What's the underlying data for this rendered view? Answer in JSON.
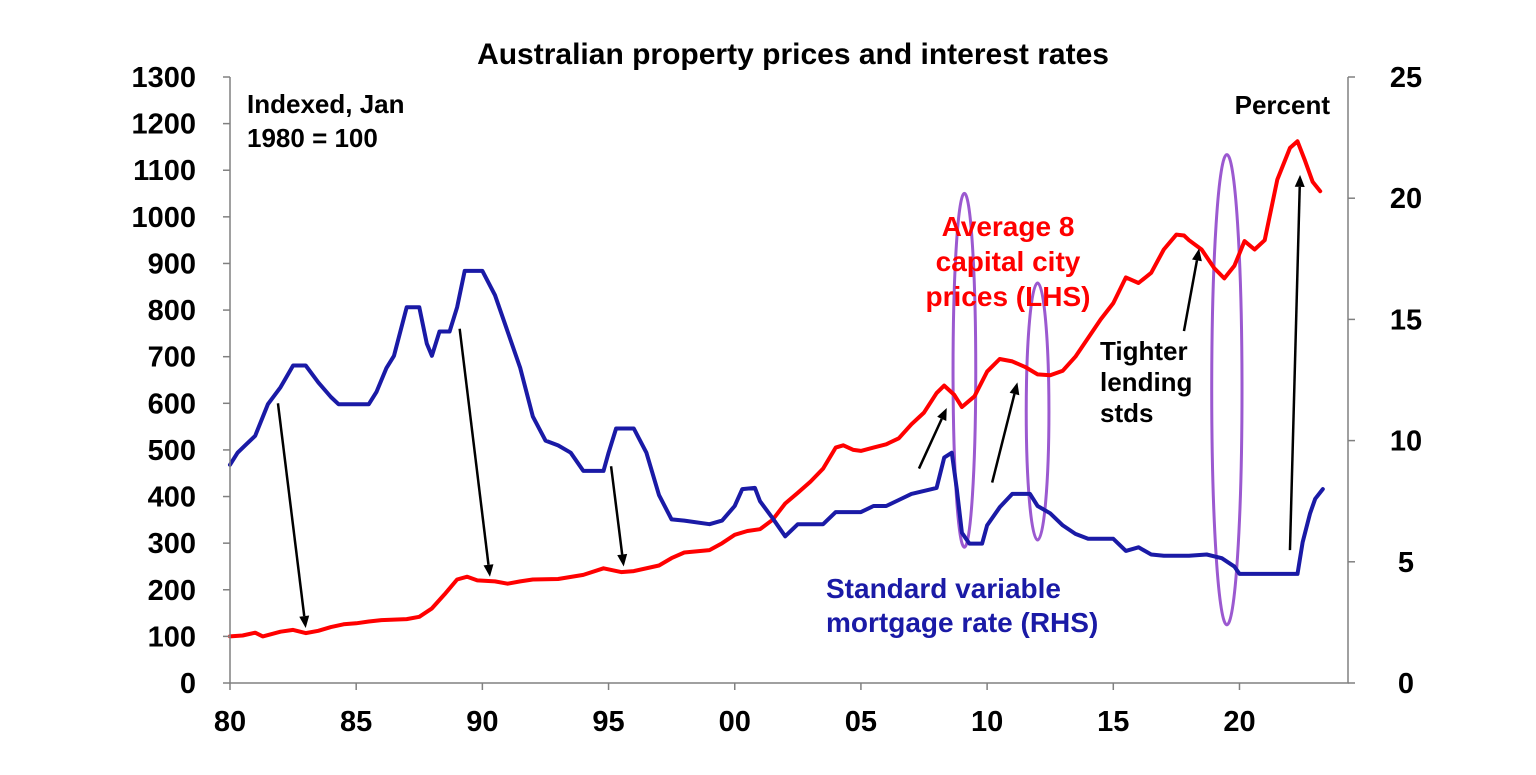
{
  "chart_data": {
    "type": "line",
    "title": "Australian property prices and interest rates",
    "left_axis_note": [
      "Indexed, Jan",
      "1980 = 100"
    ],
    "right_axis_note": "Percent",
    "x_ticks": [
      {
        "label": "80",
        "year": 1980
      },
      {
        "label": "85",
        "year": 1985
      },
      {
        "label": "90",
        "year": 1990
      },
      {
        "label": "95",
        "year": 1995
      },
      {
        "label": "00",
        "year": 2000
      },
      {
        "label": "05",
        "year": 2005
      },
      {
        "label": "10",
        "year": 2010
      },
      {
        "label": "15",
        "year": 2015
      },
      {
        "label": "20",
        "year": 2020
      }
    ],
    "xlim": [
      1980,
      2024.3
    ],
    "y_left": {
      "lim": [
        0,
        1300
      ],
      "ticks": [
        "0",
        "100",
        "200",
        "300",
        "400",
        "500",
        "600",
        "700",
        "800",
        "900",
        "1000",
        "1100",
        "1200",
        "1300"
      ]
    },
    "y_right": {
      "lim": [
        0,
        25
      ],
      "ticks": [
        "0",
        "5",
        "10",
        "15",
        "20",
        "25"
      ]
    },
    "series": [
      {
        "name": "Average 8 capital city prices (LHS)",
        "label_lines": [
          "Average 8",
          "capital city",
          "prices (LHS)"
        ],
        "color": "#ff0000",
        "axis": "left",
        "points": [
          [
            1980,
            100
          ],
          [
            1980.5,
            102
          ],
          [
            1981,
            108
          ],
          [
            1981.3,
            100
          ],
          [
            1982,
            110
          ],
          [
            1982.5,
            114
          ],
          [
            1983,
            107
          ],
          [
            1983.5,
            112
          ],
          [
            1984,
            120
          ],
          [
            1984.5,
            126
          ],
          [
            1985,
            128
          ],
          [
            1985.5,
            132
          ],
          [
            1986,
            135
          ],
          [
            1986.5,
            136
          ],
          [
            1987,
            137
          ],
          [
            1987.5,
            142
          ],
          [
            1988,
            160
          ],
          [
            1988.5,
            190
          ],
          [
            1989,
            222
          ],
          [
            1989.4,
            228
          ],
          [
            1989.8,
            220
          ],
          [
            1990.5,
            218
          ],
          [
            1991,
            213
          ],
          [
            1991.5,
            218
          ],
          [
            1992,
            222
          ],
          [
            1993,
            223
          ],
          [
            1994,
            232
          ],
          [
            1994.8,
            246
          ],
          [
            1995.5,
            238
          ],
          [
            1996,
            240
          ],
          [
            1997,
            252
          ],
          [
            1997.5,
            268
          ],
          [
            1998,
            280
          ],
          [
            1999,
            285
          ],
          [
            1999.5,
            300
          ],
          [
            2000,
            318
          ],
          [
            2000.5,
            326
          ],
          [
            2001,
            330
          ],
          [
            2001.5,
            350
          ],
          [
            2002,
            385
          ],
          [
            2002.5,
            408
          ],
          [
            2003,
            432
          ],
          [
            2003.5,
            460
          ],
          [
            2004,
            505
          ],
          [
            2004.3,
            510
          ],
          [
            2004.7,
            500
          ],
          [
            2005,
            498
          ],
          [
            2005.5,
            505
          ],
          [
            2006,
            512
          ],
          [
            2006.5,
            525
          ],
          [
            2007,
            555
          ],
          [
            2007.5,
            580
          ],
          [
            2008,
            622
          ],
          [
            2008.3,
            638
          ],
          [
            2008.7,
            618
          ],
          [
            2009,
            592
          ],
          [
            2009.5,
            615
          ],
          [
            2010,
            668
          ],
          [
            2010.5,
            695
          ],
          [
            2011,
            690
          ],
          [
            2011.5,
            678
          ],
          [
            2012,
            662
          ],
          [
            2012.5,
            660
          ],
          [
            2013,
            670
          ],
          [
            2013.5,
            700
          ],
          [
            2014,
            740
          ],
          [
            2014.5,
            780
          ],
          [
            2015,
            815
          ],
          [
            2015.5,
            870
          ],
          [
            2016,
            858
          ],
          [
            2016.5,
            880
          ],
          [
            2017,
            930
          ],
          [
            2017.5,
            962
          ],
          [
            2017.8,
            960
          ],
          [
            2018,
            950
          ],
          [
            2018.5,
            930
          ],
          [
            2019,
            890
          ],
          [
            2019.4,
            868
          ],
          [
            2019.8,
            895
          ],
          [
            2020.2,
            948
          ],
          [
            2020.6,
            930
          ],
          [
            2021,
            950
          ],
          [
            2021.5,
            1080
          ],
          [
            2022,
            1148
          ],
          [
            2022.3,
            1162
          ],
          [
            2022.6,
            1120
          ],
          [
            2022.9,
            1075
          ],
          [
            2023.2,
            1055
          ]
        ]
      },
      {
        "name": "Standard variable mortgage rate (RHS)",
        "label_lines": [
          "Standard variable",
          "mortgage rate (RHS)"
        ],
        "color": "#1a1aa6",
        "axis": "right",
        "points": [
          [
            1980,
            9.0
          ],
          [
            1980.3,
            9.5
          ],
          [
            1980.6,
            9.8
          ],
          [
            1981,
            10.2
          ],
          [
            1981.5,
            11.5
          ],
          [
            1982,
            12.2
          ],
          [
            1982.5,
            13.1
          ],
          [
            1983,
            13.1
          ],
          [
            1983.5,
            12.4
          ],
          [
            1984,
            11.8
          ],
          [
            1984.3,
            11.5
          ],
          [
            1985.5,
            11.5
          ],
          [
            1985.8,
            12.0
          ],
          [
            1986.2,
            13.0
          ],
          [
            1986.5,
            13.5
          ],
          [
            1987,
            15.5
          ],
          [
            1987.5,
            15.5
          ],
          [
            1987.8,
            14.0
          ],
          [
            1988,
            13.5
          ],
          [
            1988.3,
            14.5
          ],
          [
            1988.7,
            14.5
          ],
          [
            1989,
            15.5
          ],
          [
            1989.3,
            17.0
          ],
          [
            1990,
            17.0
          ],
          [
            1990.5,
            16.0
          ],
          [
            1991,
            14.5
          ],
          [
            1991.5,
            13.0
          ],
          [
            1992,
            11.0
          ],
          [
            1992.5,
            10.0
          ],
          [
            1993,
            9.8
          ],
          [
            1993.5,
            9.5
          ],
          [
            1994,
            8.75
          ],
          [
            1994.8,
            8.75
          ],
          [
            1995,
            9.5
          ],
          [
            1995.3,
            10.5
          ],
          [
            1996,
            10.5
          ],
          [
            1996.5,
            9.5
          ],
          [
            1997,
            7.75
          ],
          [
            1997.5,
            6.75
          ],
          [
            1998,
            6.7
          ],
          [
            1999,
            6.55
          ],
          [
            1999.5,
            6.7
          ],
          [
            2000,
            7.3
          ],
          [
            2000.3,
            8.0
          ],
          [
            2000.8,
            8.05
          ],
          [
            2001,
            7.5
          ],
          [
            2001.5,
            6.8
          ],
          [
            2002,
            6.05
          ],
          [
            2002.5,
            6.55
          ],
          [
            2003,
            6.55
          ],
          [
            2003.5,
            6.55
          ],
          [
            2004,
            7.05
          ],
          [
            2005,
            7.05
          ],
          [
            2005.5,
            7.3
          ],
          [
            2006,
            7.3
          ],
          [
            2006.5,
            7.55
          ],
          [
            2007,
            7.8
          ],
          [
            2008,
            8.05
          ],
          [
            2008.3,
            9.3
          ],
          [
            2008.6,
            9.5
          ],
          [
            2008.8,
            8.0
          ],
          [
            2009,
            6.2
          ],
          [
            2009.3,
            5.75
          ],
          [
            2009.8,
            5.75
          ],
          [
            2010,
            6.5
          ],
          [
            2010.5,
            7.25
          ],
          [
            2011,
            7.8
          ],
          [
            2011.7,
            7.8
          ],
          [
            2012,
            7.3
          ],
          [
            2012.5,
            7.0
          ],
          [
            2013,
            6.5
          ],
          [
            2013.5,
            6.15
          ],
          [
            2014,
            5.95
          ],
          [
            2015,
            5.95
          ],
          [
            2015.5,
            5.45
          ],
          [
            2016,
            5.6
          ],
          [
            2016.5,
            5.3
          ],
          [
            2017,
            5.25
          ],
          [
            2018,
            5.25
          ],
          [
            2018.7,
            5.3
          ],
          [
            2019.3,
            5.15
          ],
          [
            2019.8,
            4.8
          ],
          [
            2020,
            4.5
          ],
          [
            2022.3,
            4.5
          ],
          [
            2022.5,
            5.8
          ],
          [
            2022.8,
            7.0
          ],
          [
            2023,
            7.6
          ],
          [
            2023.3,
            8.0
          ]
        ]
      }
    ],
    "annotations": {
      "tighter_lending": [
        "Tighter",
        "lending",
        "stds"
      ],
      "arrows": [
        {
          "from": [
            1981.9,
            600
          ],
          "to": [
            1983.0,
            118
          ]
        },
        {
          "from": [
            1989.1,
            760
          ],
          "to": [
            1990.3,
            228
          ]
        },
        {
          "from": [
            1995.1,
            465
          ],
          "to": [
            1995.6,
            250
          ]
        },
        {
          "from": [
            2007.3,
            460
          ],
          "to": [
            2008.4,
            590
          ]
        },
        {
          "from": [
            2010.2,
            430
          ],
          "to": [
            2011.2,
            645
          ]
        },
        {
          "from": [
            2017.8,
            755
          ],
          "to": [
            2018.4,
            932
          ]
        },
        {
          "from": [
            2022.0,
            285
          ],
          "to": [
            2022.4,
            1090
          ]
        }
      ],
      "ellipses": [
        {
          "center": [
            2009.1,
            12.9
          ],
          "rx_years": 0.45,
          "ry_percent": 7.3
        },
        {
          "center": [
            2012.0,
            11.2
          ],
          "rx_years": 0.45,
          "ry_percent": 5.3
        },
        {
          "center": [
            2019.5,
            12.1
          ],
          "rx_years": 0.6,
          "ry_percent": 9.7
        }
      ]
    }
  }
}
